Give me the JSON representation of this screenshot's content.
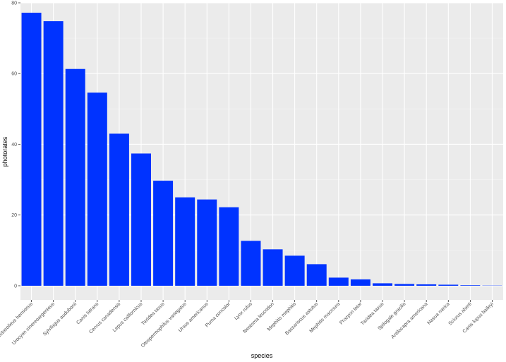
{
  "chart_data": {
    "type": "bar",
    "xlabel": "species",
    "ylabel": "photorates",
    "ylim": [
      -4,
      80
    ],
    "yticks": [
      0,
      20,
      40,
      60,
      80
    ],
    "grid": true,
    "legend": "none",
    "colors": {
      "bar": "#0033ff",
      "panel": "#ebebeb",
      "grid_major": "#ffffff",
      "grid_minor": "#f5f5f5",
      "tick_text": "#4d4d4d"
    },
    "categories": [
      "Odocoileus hemionus",
      "Urocyon cinereoargenteus",
      "Sylvilagus audubonii",
      "Canis latrans",
      "Cervus canadensis",
      "Lepus californicus",
      "Taxidea taxus",
      "Otospermophilus variegatus",
      "Ursus americanus",
      "Puma concolor",
      "Lynx rufus",
      "Neotoma leucodon",
      "Mephitis mephitis",
      "Bassariscus astutus",
      "Mephitis macroura",
      "Procyon lotor",
      "Taxidea taxus",
      "Spilogale gracilis",
      "Antilocapra americana",
      "Nasua narica",
      "Sciurus aberti",
      "Canis lupus baileyi"
    ],
    "values": [
      77.2,
      74.8,
      61.3,
      54.6,
      43.0,
      37.4,
      29.7,
      25.0,
      24.4,
      22.2,
      12.7,
      10.3,
      8.5,
      6.1,
      2.3,
      1.8,
      0.7,
      0.5,
      0.4,
      0.3,
      0.15,
      0.05
    ]
  }
}
